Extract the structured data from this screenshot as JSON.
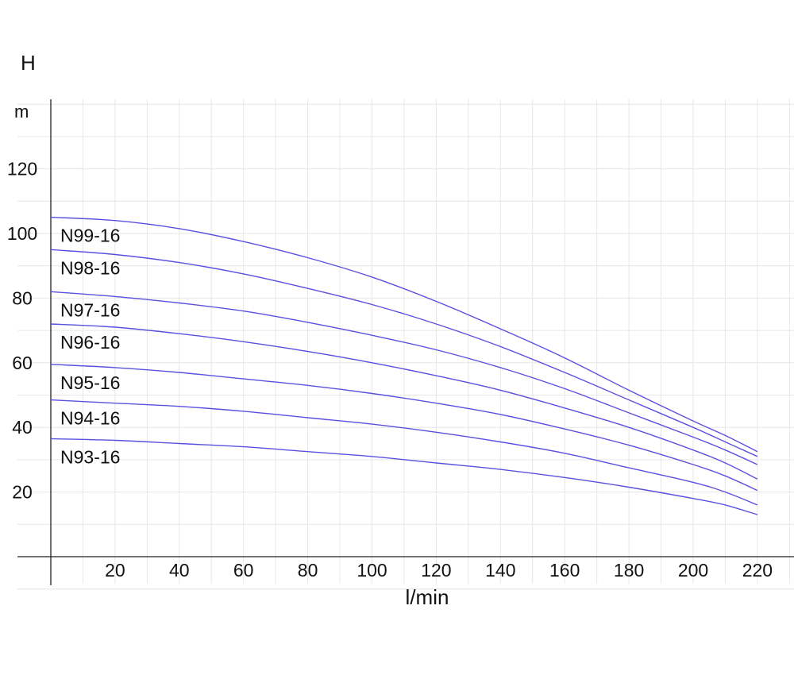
{
  "chart_data": {
    "type": "line",
    "ylabel": "H",
    "yunit": "m",
    "xlabel": "l/min",
    "xlim": [
      0,
      230
    ],
    "ylim": [
      -10,
      142
    ],
    "xticks": [
      20,
      40,
      60,
      80,
      100,
      120,
      140,
      160,
      180,
      200,
      220
    ],
    "yticks": [
      20,
      40,
      60,
      80,
      100,
      120
    ],
    "grid": true,
    "legend": "inline-left",
    "line_color": "#5a50e0",
    "grid_color": "#e6e6e6",
    "x": [
      0,
      20,
      40,
      60,
      80,
      100,
      120,
      140,
      160,
      180,
      200,
      210,
      220
    ],
    "series": [
      {
        "name": "N99-16",
        "values": [
          105,
          104,
          101.5,
          97.5,
          92.5,
          86.5,
          79,
          70.5,
          61.5,
          51.5,
          42,
          37.5,
          32.5
        ]
      },
      {
        "name": "N98-16",
        "values": [
          95,
          93.5,
          91,
          87.5,
          83,
          78,
          72,
          65,
          57,
          48.5,
          40,
          35.5,
          31
        ]
      },
      {
        "name": "N97-16",
        "values": [
          82,
          80.5,
          78.5,
          76,
          72.5,
          68.5,
          64,
          58.5,
          52,
          44.5,
          37,
          33,
          28.5
        ]
      },
      {
        "name": "N96-16",
        "values": [
          72,
          71,
          69,
          66.5,
          63.5,
          60,
          56,
          51.5,
          46,
          40,
          33,
          29,
          24
        ]
      },
      {
        "name": "N95-16",
        "values": [
          59.5,
          58.5,
          57,
          55,
          53,
          50.5,
          47.5,
          44,
          39.5,
          34.5,
          28.5,
          25,
          20.5
        ]
      },
      {
        "name": "N94-16",
        "values": [
          48.5,
          47.5,
          46.5,
          45,
          43,
          41,
          38.5,
          35.5,
          32,
          27.5,
          23,
          20,
          16
        ]
      },
      {
        "name": "N93-16",
        "values": [
          36.5,
          36,
          35,
          34,
          32.5,
          31,
          29,
          27,
          24.5,
          21.5,
          18,
          16,
          13
        ]
      }
    ]
  }
}
